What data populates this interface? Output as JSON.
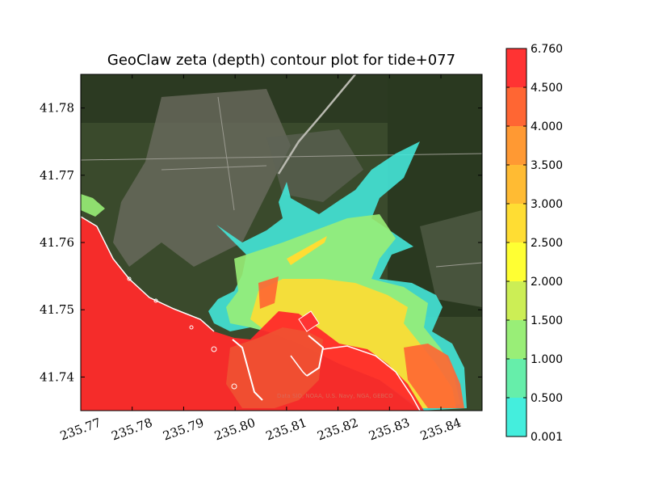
{
  "chart_data": {
    "type": "heatmap",
    "title": "GeoClaw zeta (depth) contour plot for tide+077",
    "xlabel": "",
    "ylabel": "",
    "xlim": [
      235.77,
      235.848
    ],
    "ylim": [
      41.735,
      41.785
    ],
    "x_ticks": [
      {
        "value": 235.77,
        "label": "235.77"
      },
      {
        "value": 235.78,
        "label": "235.78"
      },
      {
        "value": 235.79,
        "label": "235.79"
      },
      {
        "value": 235.8,
        "label": "235.80"
      },
      {
        "value": 235.81,
        "label": "235.81"
      },
      {
        "value": 235.82,
        "label": "235.82"
      },
      {
        "value": 235.83,
        "label": "235.83"
      },
      {
        "value": 235.84,
        "label": "235.84"
      }
    ],
    "y_ticks": [
      {
        "value": 41.74,
        "label": "41.74"
      },
      {
        "value": 41.75,
        "label": "41.75"
      },
      {
        "value": 41.76,
        "label": "41.76"
      },
      {
        "value": 41.77,
        "label": "41.77"
      },
      {
        "value": 41.78,
        "label": "41.78"
      }
    ],
    "colorbar": {
      "levels": [
        {
          "label": "0.001",
          "color": "#33ffff"
        },
        {
          "label": "0.500",
          "color": "#44eedd"
        },
        {
          "label": "1.000",
          "color": "#66eeaa"
        },
        {
          "label": "1.500",
          "color": "#99ee77"
        },
        {
          "label": "2.000",
          "color": "#ccee55"
        },
        {
          "label": "2.500",
          "color": "#ffff33"
        },
        {
          "label": "3.000",
          "color": "#ffdd33"
        },
        {
          "label": "3.500",
          "color": "#ffbb33"
        },
        {
          "label": "4.000",
          "color": "#ff9933"
        },
        {
          "label": "4.500",
          "color": "#ff6633"
        },
        {
          "label": "6.760",
          "color": "#ff3333"
        }
      ]
    },
    "attribution": "Data SIO, NOAA, U.S. Navy, NGA, GEBCO"
  }
}
